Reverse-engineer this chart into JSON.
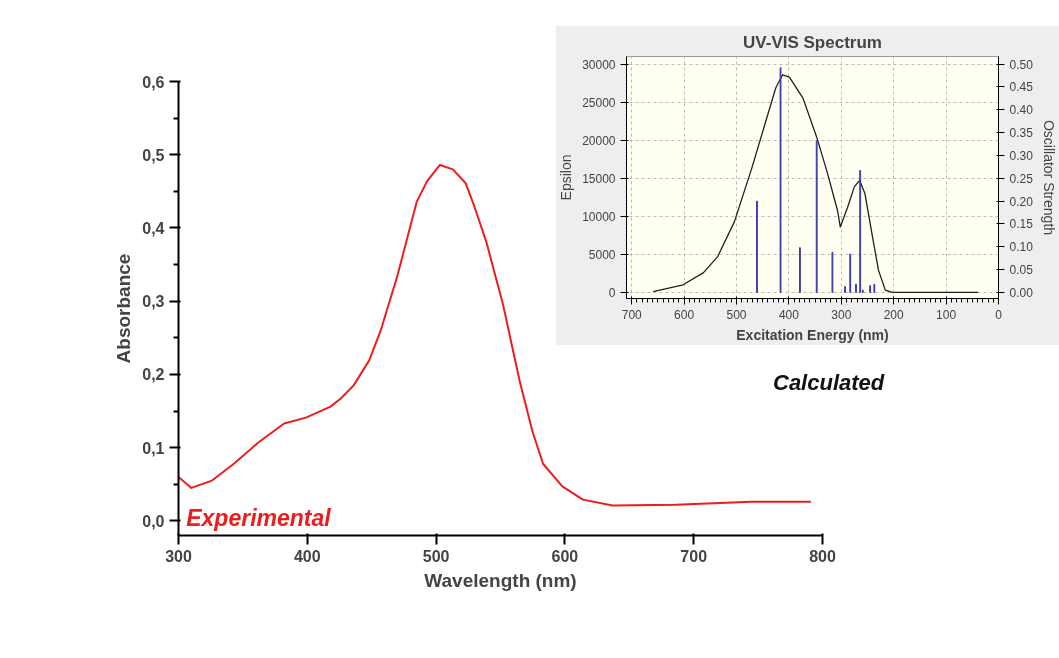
{
  "chart_data": [
    {
      "type": "line",
      "xlabel": "Wavelength (nm)",
      "ylabel": "Absorbance",
      "xlim": [
        300,
        800
      ],
      "ylim": [
        -0.02,
        0.6
      ],
      "xticks": [
        300,
        400,
        500,
        600,
        700,
        800
      ],
      "yticks": [
        {
          "value": 0,
          "label": "0,0"
        },
        {
          "value": 0.1,
          "label": "0,1"
        },
        {
          "value": 0.2,
          "label": "0,2"
        },
        {
          "value": 0.3,
          "label": "0,3"
        },
        {
          "value": 0.4,
          "label": "0,4"
        },
        {
          "value": 0.5,
          "label": "0,5"
        },
        {
          "value": 0.6,
          "label": "0,6"
        }
      ],
      "grid": false,
      "annotations": [
        "Experimental"
      ],
      "series": [
        {
          "color": "#ee1c1c",
          "x": [
            300,
            310,
            326,
            343,
            362,
            382,
            399,
            418,
            426,
            436,
            448,
            457,
            470,
            485,
            493,
            503,
            513,
            523,
            529,
            539,
            552,
            565,
            575,
            583,
            598,
            614,
            637,
            686,
            745,
            791
          ],
          "values": [
            0.06,
            0.045,
            0.055,
            0.078,
            0.107,
            0.133,
            0.141,
            0.156,
            0.167,
            0.185,
            0.219,
            0.26,
            0.335,
            0.436,
            0.464,
            0.486,
            0.48,
            0.461,
            0.433,
            0.381,
            0.295,
            0.19,
            0.121,
            0.078,
            0.047,
            0.029,
            0.021,
            0.022,
            0.026,
            0.026
          ]
        }
      ]
    },
    {
      "type": "line",
      "title": "UV-VIS Spectrum",
      "xlabel": "Excitation Energy (nm)",
      "ylabel": "Epsilon",
      "y2label": "Oscillator Strength",
      "xlim": [
        710,
        0
      ],
      "ylim": [
        -800,
        31000
      ],
      "y2lim": [
        -0.0133,
        0.5167
      ],
      "xticks": [
        700,
        600,
        500,
        400,
        300,
        200,
        100,
        0
      ],
      "yticks": [
        0,
        5000,
        10000,
        15000,
        20000,
        25000,
        30000
      ],
      "y2ticks": [
        {
          "value": 0,
          "label": "0.00"
        },
        {
          "value": 0.05,
          "label": "0.05"
        },
        {
          "value": 0.1,
          "label": "0.10"
        },
        {
          "value": 0.15,
          "label": "0.15"
        },
        {
          "value": 0.2,
          "label": "0.20"
        },
        {
          "value": 0.25,
          "label": "0.25"
        },
        {
          "value": 0.3,
          "label": "0.30"
        },
        {
          "value": 0.35,
          "label": "0.35"
        },
        {
          "value": 0.4,
          "label": "0.40"
        },
        {
          "value": 0.45,
          "label": "0.45"
        },
        {
          "value": 0.5,
          "label": "0.50"
        }
      ],
      "grid": true,
      "annotations": [
        "Calculated"
      ],
      "series": [
        {
          "type": "line",
          "color": "#202020",
          "x": [
            659,
            602,
            563,
            536,
            504,
            471,
            445,
            425,
            412,
            399,
            373,
            347,
            327,
            307,
            302,
            288,
            275,
            265,
            255,
            242,
            229,
            216,
            203,
            39
          ],
          "values": [
            100,
            1000,
            2600,
            4700,
            9300,
            16300,
            22300,
            26900,
            28600,
            28300,
            25500,
            20400,
            15800,
            10700,
            8600,
            11200,
            13900,
            14700,
            13000,
            7900,
            2900,
            300,
            0,
            0
          ]
        },
        {
          "type": "bar",
          "axis": "y2",
          "color": "#3c3caf",
          "x": [
            461,
            416,
            379,
            347,
            317,
            293,
            283,
            272,
            264,
            259,
            245,
            237
          ],
          "values": [
            0.2,
            0.492,
            0.098,
            0.332,
            0.088,
            0.013,
            0.084,
            0.018,
            0.267,
            0.005,
            0.015,
            0.018
          ]
        }
      ]
    }
  ]
}
